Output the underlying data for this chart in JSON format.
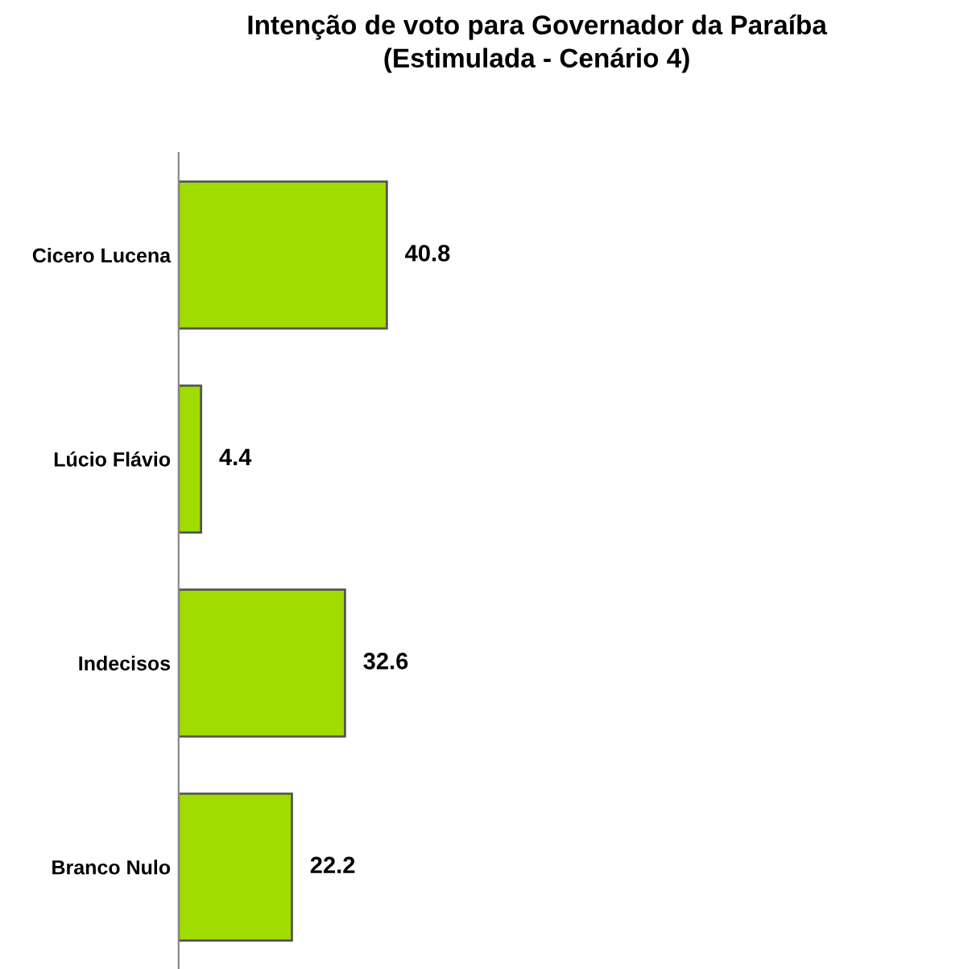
{
  "chart_data": {
    "type": "bar",
    "orientation": "horizontal",
    "title": "Intenção de voto para Governador da Paraíba\n(Estimulada - Cenário 4)",
    "categories": [
      "Cicero Lucena",
      "Lúcio Flávio",
      "Indecisos",
      "Branco Nulo"
    ],
    "values": [
      40.8,
      4.4,
      32.6,
      22.2
    ],
    "color": "#a0dc00",
    "tick_labels": "y",
    "data_labels": true,
    "grid": false,
    "legend": false
  }
}
